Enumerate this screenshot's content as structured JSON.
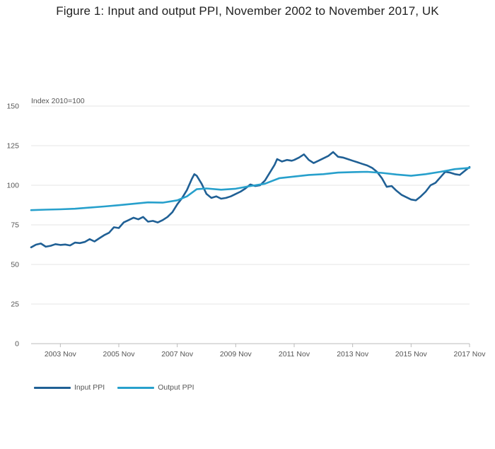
{
  "chart_data": {
    "type": "line",
    "title": "Figure 1: Input and output PPI, November 2002 to November 2017, UK",
    "unit_label": "Index 2010=100",
    "ylim": [
      0,
      150
    ],
    "y_ticks": [
      0,
      25,
      50,
      75,
      100,
      125,
      150
    ],
    "xlim": [
      "2002-11",
      "2017-11"
    ],
    "x_ticks": [
      "2003 Nov",
      "2005 Nov",
      "2007 Nov",
      "2009 Nov",
      "2011 Nov",
      "2013 Nov",
      "2015 Nov",
      "2017 Nov"
    ],
    "grid": true,
    "legend_position": "bottom-left",
    "series": [
      {
        "name": "Input PPI",
        "color": "#206095",
        "points": [
          [
            "2002-11",
            60.8
          ],
          [
            "2003-01",
            62.5
          ],
          [
            "2003-03",
            63.2
          ],
          [
            "2003-05",
            61.2
          ],
          [
            "2003-07",
            61.8
          ],
          [
            "2003-09",
            62.8
          ],
          [
            "2003-11",
            62.3
          ],
          [
            "2004-01",
            62.6
          ],
          [
            "2004-03",
            62.0
          ],
          [
            "2004-05",
            63.8
          ],
          [
            "2004-07",
            63.5
          ],
          [
            "2004-09",
            64.2
          ],
          [
            "2004-11",
            66.0
          ],
          [
            "2005-01",
            64.5
          ],
          [
            "2005-03",
            66.5
          ],
          [
            "2005-05",
            68.5
          ],
          [
            "2005-07",
            70.0
          ],
          [
            "2005-09",
            73.5
          ],
          [
            "2005-11",
            73.0
          ],
          [
            "2006-01",
            76.5
          ],
          [
            "2006-03",
            78.0
          ],
          [
            "2006-05",
            79.5
          ],
          [
            "2006-07",
            78.5
          ],
          [
            "2006-09",
            80.0
          ],
          [
            "2006-11",
            77.0
          ],
          [
            "2007-01",
            77.5
          ],
          [
            "2007-03",
            76.5
          ],
          [
            "2007-05",
            78.0
          ],
          [
            "2007-07",
            80.0
          ],
          [
            "2007-09",
            83.0
          ],
          [
            "2007-11",
            88.0
          ],
          [
            "2008-01",
            92.0
          ],
          [
            "2008-03",
            97.0
          ],
          [
            "2008-05",
            104.0
          ],
          [
            "2008-06",
            107.0
          ],
          [
            "2008-07",
            106.0
          ],
          [
            "2008-09",
            101.0
          ],
          [
            "2008-11",
            94.5
          ],
          [
            "2009-01",
            92.0
          ],
          [
            "2009-03",
            93.0
          ],
          [
            "2009-05",
            91.5
          ],
          [
            "2009-07",
            92.0
          ],
          [
            "2009-09",
            93.0
          ],
          [
            "2009-11",
            94.5
          ],
          [
            "2010-01",
            96.0
          ],
          [
            "2010-03",
            98.0
          ],
          [
            "2010-05",
            100.5
          ],
          [
            "2010-07",
            99.5
          ],
          [
            "2010-09",
            100.0
          ],
          [
            "2010-11",
            103.0
          ],
          [
            "2011-01",
            108.0
          ],
          [
            "2011-03",
            113.0
          ],
          [
            "2011-04",
            116.5
          ],
          [
            "2011-06",
            115.0
          ],
          [
            "2011-08",
            116.0
          ],
          [
            "2011-10",
            115.5
          ],
          [
            "2011-11",
            116.0
          ],
          [
            "2012-01",
            117.5
          ],
          [
            "2012-03",
            119.5
          ],
          [
            "2012-05",
            116.0
          ],
          [
            "2012-07",
            114.0
          ],
          [
            "2012-09",
            115.5
          ],
          [
            "2012-11",
            117.0
          ],
          [
            "2013-01",
            118.5
          ],
          [
            "2013-03",
            121.0
          ],
          [
            "2013-05",
            118.0
          ],
          [
            "2013-07",
            117.5
          ],
          [
            "2013-09",
            116.5
          ],
          [
            "2013-11",
            115.5
          ],
          [
            "2014-01",
            114.5
          ],
          [
            "2014-03",
            113.5
          ],
          [
            "2014-05",
            112.5
          ],
          [
            "2014-07",
            111.0
          ],
          [
            "2014-09",
            108.5
          ],
          [
            "2014-11",
            104.5
          ],
          [
            "2015-01",
            99.0
          ],
          [
            "2015-03",
            99.5
          ],
          [
            "2015-05",
            96.5
          ],
          [
            "2015-07",
            94.0
          ],
          [
            "2015-09",
            92.5
          ],
          [
            "2015-11",
            91.0
          ],
          [
            "2016-01",
            90.5
          ],
          [
            "2016-03",
            93.0
          ],
          [
            "2016-05",
            96.0
          ],
          [
            "2016-07",
            100.0
          ],
          [
            "2016-09",
            101.5
          ],
          [
            "2016-11",
            105.0
          ],
          [
            "2017-01",
            108.5
          ],
          [
            "2017-03",
            108.0
          ],
          [
            "2017-05",
            107.0
          ],
          [
            "2017-07",
            106.5
          ],
          [
            "2017-09",
            109.0
          ],
          [
            "2017-11",
            111.5
          ]
        ]
      },
      {
        "name": "Output PPI",
        "color": "#27a0cc",
        "points": [
          [
            "2002-11",
            84.3
          ],
          [
            "2003-05",
            84.6
          ],
          [
            "2003-11",
            84.8
          ],
          [
            "2004-05",
            85.2
          ],
          [
            "2004-11",
            85.9
          ],
          [
            "2005-05",
            86.6
          ],
          [
            "2005-11",
            87.4
          ],
          [
            "2006-05",
            88.3
          ],
          [
            "2006-11",
            89.2
          ],
          [
            "2007-05",
            89.0
          ],
          [
            "2007-11",
            90.5
          ],
          [
            "2008-03",
            93.0
          ],
          [
            "2008-07",
            97.5
          ],
          [
            "2008-11",
            98.0
          ],
          [
            "2009-05",
            97.2
          ],
          [
            "2009-11",
            97.8
          ],
          [
            "2010-05",
            99.5
          ],
          [
            "2010-11",
            101.0
          ],
          [
            "2011-05",
            104.5
          ],
          [
            "2011-11",
            105.5
          ],
          [
            "2012-05",
            106.5
          ],
          [
            "2012-11",
            107.0
          ],
          [
            "2013-05",
            108.0
          ],
          [
            "2013-11",
            108.3
          ],
          [
            "2014-05",
            108.5
          ],
          [
            "2014-11",
            107.8
          ],
          [
            "2015-05",
            106.8
          ],
          [
            "2015-11",
            106.0
          ],
          [
            "2016-05",
            107.0
          ],
          [
            "2016-11",
            108.5
          ],
          [
            "2017-05",
            110.2
          ],
          [
            "2017-11",
            111.0
          ]
        ]
      }
    ]
  }
}
